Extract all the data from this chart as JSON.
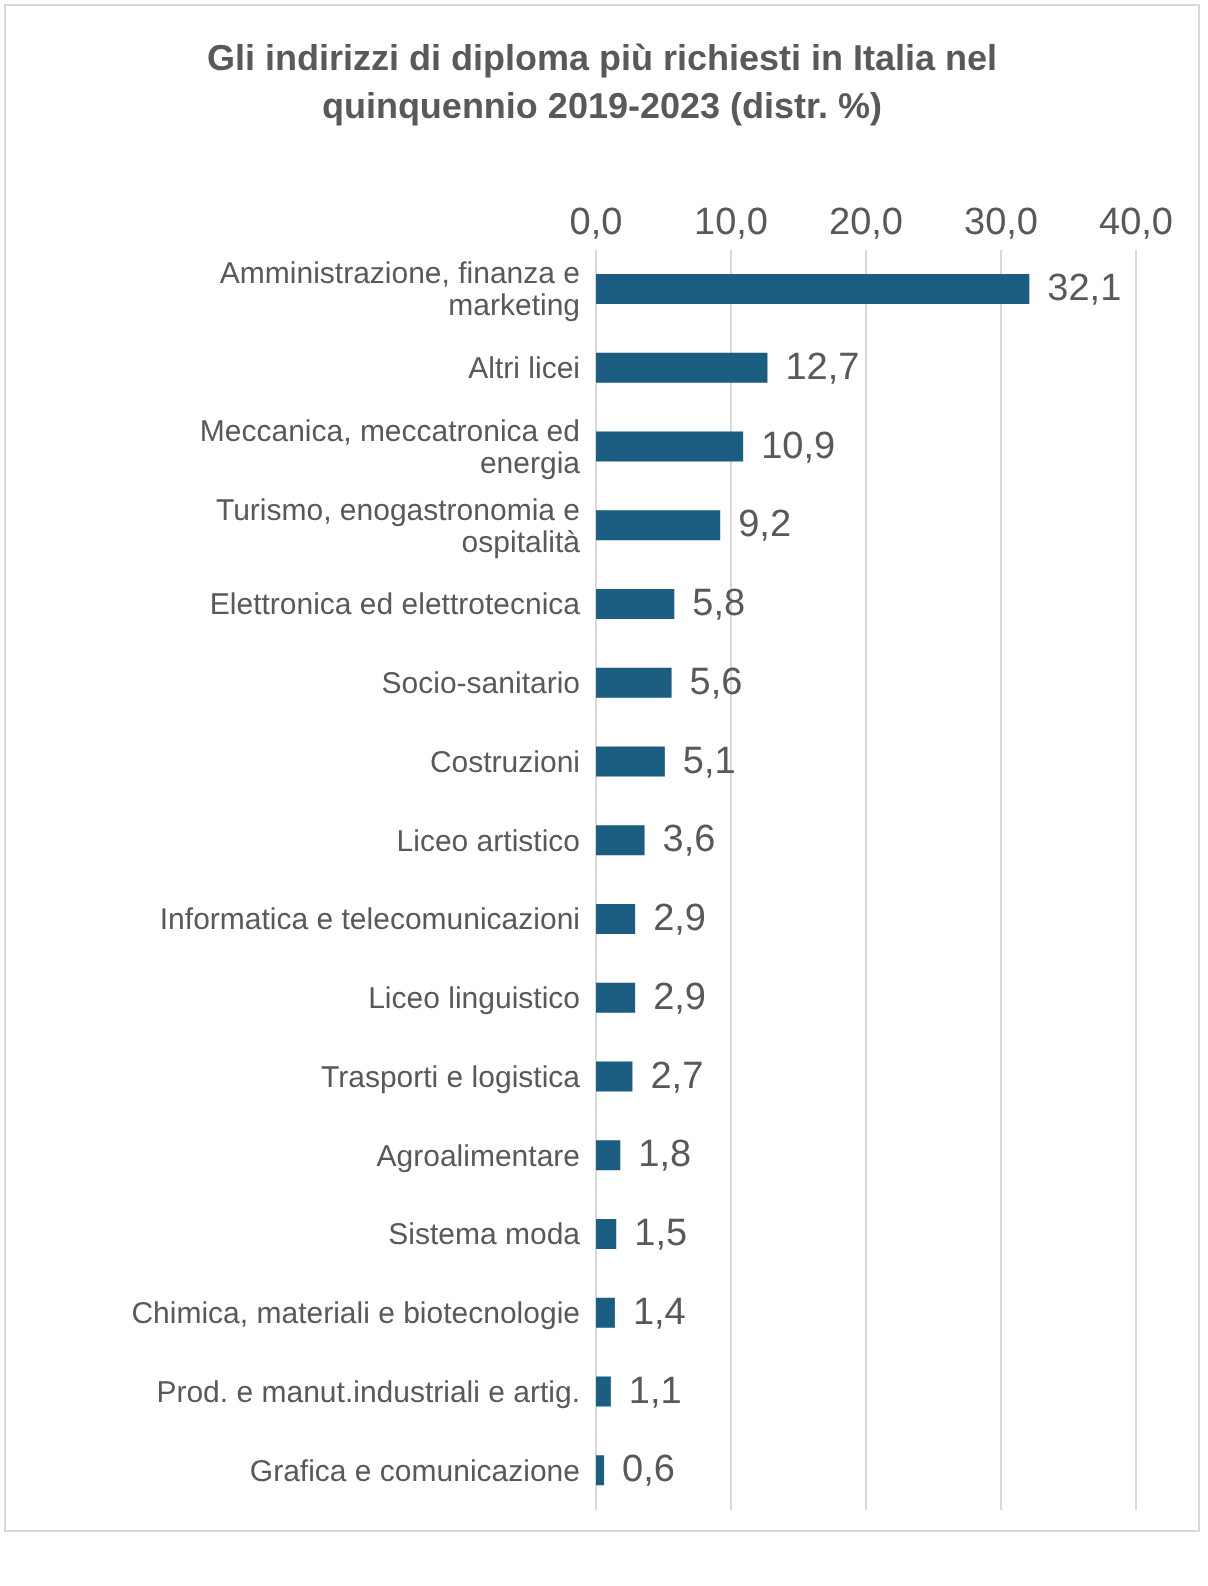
{
  "chart_data": {
    "type": "bar",
    "orientation": "horizontal",
    "title": "Gli indirizzi di diploma più richiesti in Italia nel quinquennio 2019-2023 (distr. %)",
    "categories": [
      "Amministrazione, finanza e marketing",
      "Altri licei",
      "Meccanica, meccatronica ed energia",
      "Turismo, enogastronomia e ospitalità",
      "Elettronica ed elettrotecnica",
      "Socio-sanitario",
      "Costruzioni",
      "Liceo artistico",
      "Informatica e telecomunicazioni",
      "Liceo linguistico",
      "Trasporti e logistica",
      "Agroalimentare",
      "Sistema moda",
      "Chimica, materiali e biotecnologie",
      "Prod. e manut.industriali e artig.",
      "Grafica e comunicazione"
    ],
    "values": [
      32.1,
      12.7,
      10.9,
      9.2,
      5.8,
      5.6,
      5.1,
      3.6,
      2.9,
      2.9,
      2.7,
      1.8,
      1.5,
      1.4,
      1.1,
      0.6
    ],
    "value_labels": [
      "32,1",
      "12,7",
      "10,9",
      "9,2",
      "5,8",
      "5,6",
      "5,1",
      "3,6",
      "2,9",
      "2,9",
      "2,7",
      "1,8",
      "1,5",
      "1,4",
      "1,1",
      "0,6"
    ],
    "color": "#1b5e82",
    "xlim": [
      0,
      40
    ],
    "xticks": [
      {
        "value": 0,
        "label": "0,0"
      },
      {
        "value": 10,
        "label": "10,0"
      },
      {
        "value": 20,
        "label": "20,0"
      },
      {
        "value": 30,
        "label": "30,0"
      },
      {
        "value": 40,
        "label": "40,0"
      }
    ],
    "grid": "x"
  }
}
